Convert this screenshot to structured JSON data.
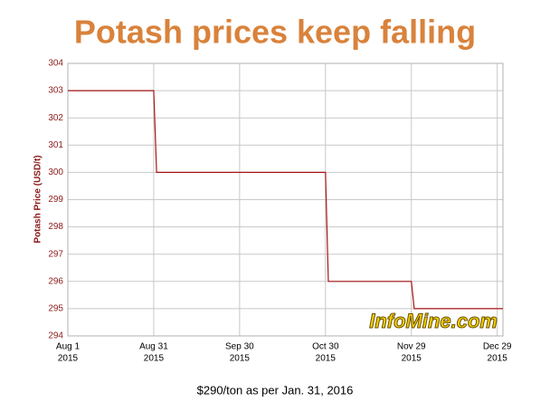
{
  "chart_data": {
    "type": "line",
    "title": "Potash prices keep falling",
    "y_label": "Potash Price (USD/t)",
    "caption": "$290/ton as per Jan. 31, 2016",
    "watermark": "InfoMine.com",
    "x": [
      "2015-08-01",
      "2015-08-31",
      "2015-09-01",
      "2015-10-30",
      "2015-10-31",
      "2015-11-29",
      "2015-11-30",
      "2015-12-31"
    ],
    "series": [
      {
        "name": "Potash Price",
        "color": "#a51515",
        "values": [
          303,
          303,
          300,
          300,
          296,
          296,
          295,
          295
        ]
      }
    ],
    "xlim": [
      "2015-08-01",
      "2015-12-31"
    ],
    "xticks": [
      {
        "value": "2015-08-01",
        "label": [
          "Aug 1",
          "2015"
        ]
      },
      {
        "value": "2015-08-31",
        "label": [
          "Aug 31",
          "2015"
        ]
      },
      {
        "value": "2015-09-30",
        "label": [
          "Sep 30",
          "2015"
        ]
      },
      {
        "value": "2015-10-30",
        "label": [
          "Oct 30",
          "2015"
        ]
      },
      {
        "value": "2015-11-29",
        "label": [
          "Nov 29",
          "2015"
        ]
      },
      {
        "value": "2015-12-29",
        "label": [
          "Dec 29",
          "2015"
        ]
      }
    ],
    "ylim": [
      294,
      304
    ],
    "yticks": [
      294,
      295,
      296,
      297,
      298,
      299,
      300,
      301,
      302,
      303,
      304
    ],
    "grid": true
  }
}
